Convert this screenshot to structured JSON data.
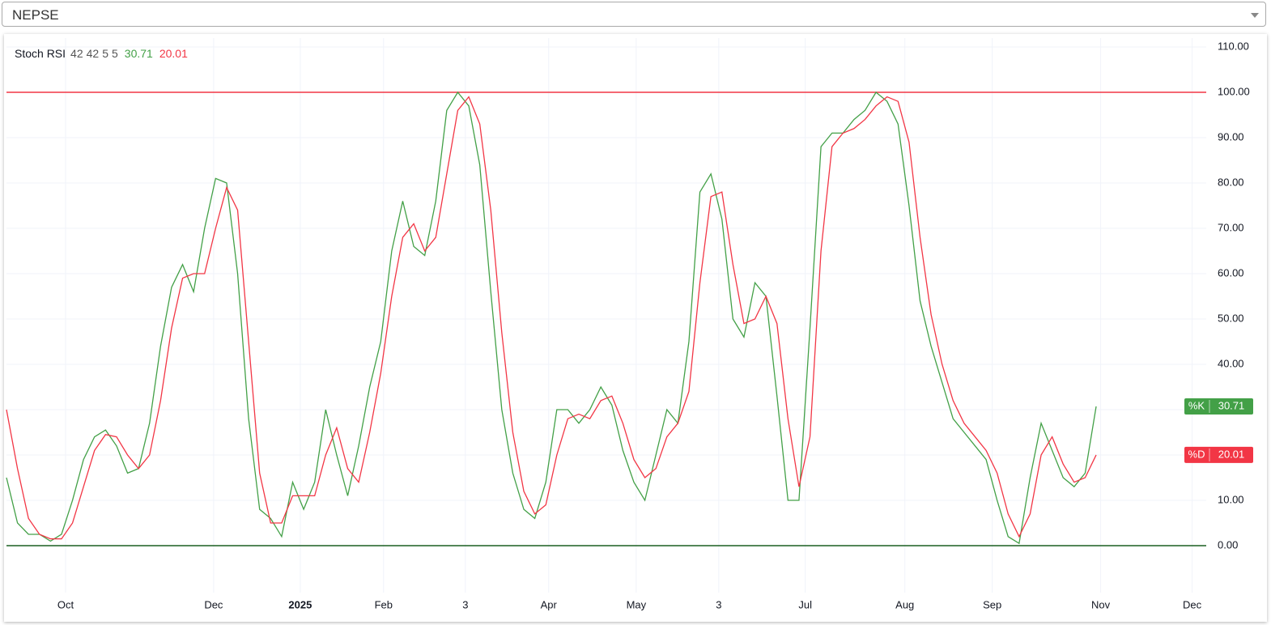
{
  "header": {
    "symbol": "NEPSE"
  },
  "chart_data": {
    "type": "line",
    "title": "Stoch RSI",
    "params": [
      42,
      42,
      5,
      5
    ],
    "x": [
      0,
      1,
      2,
      3,
      4,
      5,
      6,
      7,
      8,
      9,
      10,
      11,
      12,
      13,
      14,
      15,
      16,
      17,
      18,
      19,
      20,
      21,
      22,
      23,
      24,
      25,
      26,
      27,
      28,
      29,
      30,
      31,
      32,
      33,
      34,
      35,
      36,
      37,
      38,
      39,
      40,
      41,
      42,
      43,
      44,
      45,
      46,
      47,
      48,
      49,
      50,
      51,
      52,
      53,
      54,
      55,
      56,
      57,
      58,
      59,
      60,
      61,
      62,
      63,
      64,
      65,
      66,
      67,
      68,
      69,
      70,
      71,
      72,
      73,
      74,
      75,
      76,
      77,
      78,
      79,
      80,
      81,
      82,
      83,
      84,
      85,
      86,
      87,
      88,
      89,
      90,
      91,
      92,
      93,
      94,
      95,
      96,
      97,
      98,
      99
    ],
    "series": [
      {
        "name": "%K",
        "color": "#43a047",
        "values": [
          15,
          5,
          2.5,
          2.5,
          1,
          2.5,
          10,
          19,
          24,
          25.5,
          22,
          16,
          17,
          27,
          44,
          57,
          62,
          56,
          70,
          81,
          80,
          60,
          28,
          8,
          6,
          2,
          14,
          8,
          14,
          30,
          20,
          11,
          22,
          35,
          45,
          65,
          76,
          66,
          64,
          76,
          96,
          100,
          97,
          84,
          56,
          30,
          16,
          8,
          6,
          14,
          30,
          30,
          27,
          30,
          35,
          31,
          21,
          14,
          10,
          20,
          30,
          27,
          45,
          78,
          82,
          72,
          50,
          46,
          58,
          55,
          33,
          10,
          10,
          48,
          88,
          91,
          91,
          94,
          96,
          100,
          98,
          93,
          75,
          54,
          44,
          36,
          28,
          25,
          22,
          19,
          10,
          2,
          0.5,
          15,
          27,
          21,
          15,
          13,
          16,
          30.71
        ]
      },
      {
        "name": "%D",
        "color": "#f23645",
        "values": [
          30,
          17,
          6,
          2.5,
          1.5,
          1.5,
          5,
          13,
          21,
          24.5,
          24,
          20,
          17,
          20,
          32,
          48,
          59,
          60,
          60,
          70,
          79,
          74,
          45,
          16,
          5,
          5,
          11,
          11,
          11,
          20,
          26,
          17,
          14,
          25,
          38,
          55,
          68,
          71,
          65,
          68,
          82,
          96,
          99,
          93,
          74,
          47,
          25,
          12,
          7,
          9,
          20,
          28,
          29,
          28,
          32,
          33,
          27,
          19,
          15,
          17,
          24,
          27,
          34,
          58,
          77,
          78,
          62,
          49,
          50,
          55,
          49,
          28,
          13,
          24,
          65,
          88,
          91,
          92,
          94,
          97,
          99,
          98,
          89,
          68,
          51,
          40,
          32,
          27,
          24,
          21,
          16,
          7,
          2,
          7,
          20,
          24,
          18,
          14,
          15,
          20.01
        ]
      }
    ],
    "bands": [
      {
        "value": 100,
        "color": "#f23645"
      },
      {
        "value": 0,
        "color": "#1b5e20"
      }
    ],
    "xlim": [
      0,
      109
    ],
    "xticks": [
      {
        "value": 5.37,
        "label": "Oct"
      },
      {
        "value": 18.82,
        "label": "Dec"
      },
      {
        "value": 26.69,
        "label": "2025"
      },
      {
        "value": 34.26,
        "label": "Feb"
      },
      {
        "value": 41.69,
        "label": "3"
      },
      {
        "value": 49.26,
        "label": "Apr"
      },
      {
        "value": 57.21,
        "label": "May"
      },
      {
        "value": 64.71,
        "label": "3"
      },
      {
        "value": 72.57,
        "label": "Jul"
      },
      {
        "value": 81.62,
        "label": "Aug"
      },
      {
        "value": 89.56,
        "label": "Sep"
      },
      {
        "value": 99.41,
        "label": "Nov"
      },
      {
        "value": 107.72,
        "label": "Dec"
      }
    ],
    "ylim": [
      -10.36,
      111.96
    ],
    "yticks": [
      {
        "value": 0,
        "label": "0.00"
      },
      {
        "value": 10,
        "label": "10.00"
      },
      {
        "value": 20,
        "label": "20.00"
      },
      {
        "value": 30,
        "label": "30.00"
      },
      {
        "value": 40,
        "label": "40.00"
      },
      {
        "value": 50,
        "label": "50.00"
      },
      {
        "value": 60,
        "label": "60.00"
      },
      {
        "value": 70,
        "label": "70.00"
      },
      {
        "value": 80,
        "label": "80.00"
      },
      {
        "value": 90,
        "label": "90.00"
      },
      {
        "value": 100,
        "label": "100.00"
      },
      {
        "value": 110,
        "label": "110.00"
      }
    ],
    "grid": true
  }
}
